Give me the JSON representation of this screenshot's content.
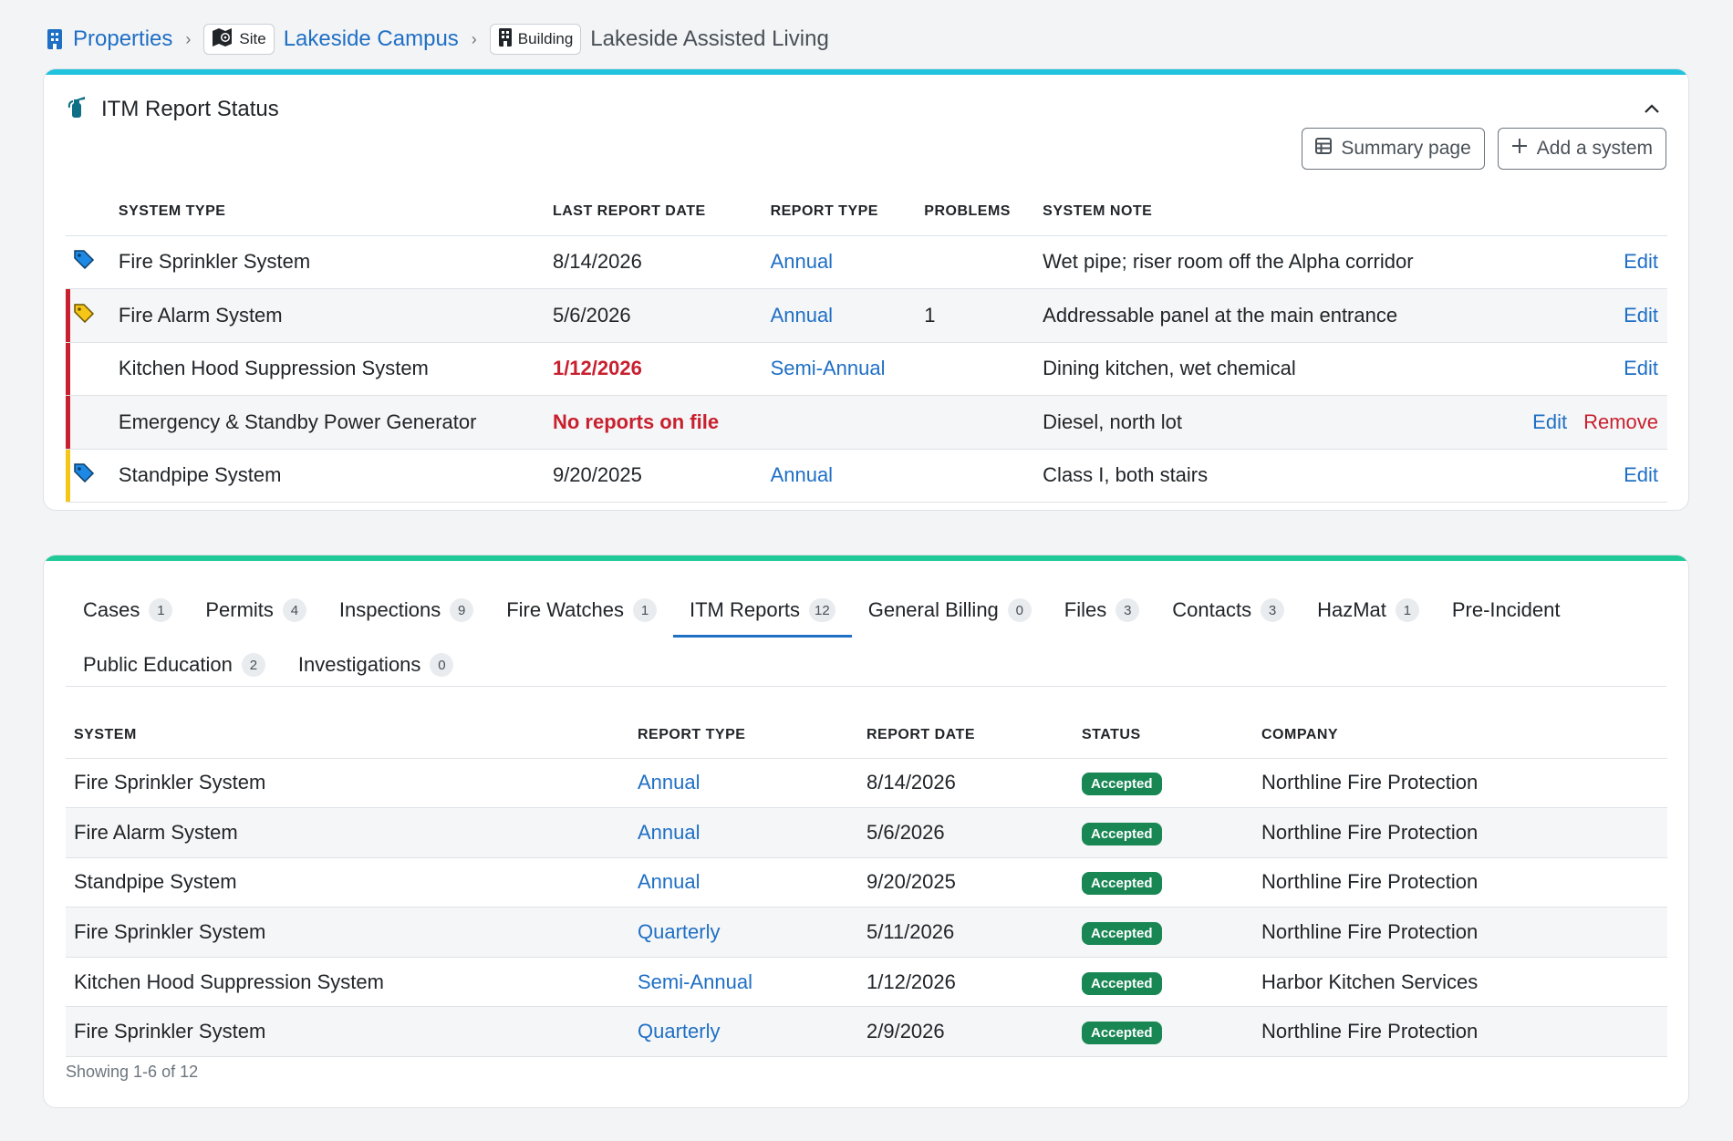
{
  "breadcrumb": {
    "root": "Properties",
    "site_pill": "Site",
    "site_name": "Lakeside Campus",
    "building_pill": "Building",
    "building_name": "Lakeside Assisted Living"
  },
  "itm_status": {
    "title": "ITM Report Status",
    "summary_button": "Summary page",
    "add_button": "Add a system",
    "columns": [
      "SYSTEM TYPE",
      "LAST REPORT DATE",
      "REPORT TYPE",
      "PROBLEMS",
      "SYSTEM NOTE"
    ],
    "rows": [
      {
        "system": "Fire Sprinkler System",
        "date": "8/14/2026",
        "type": "Annual",
        "problems": "",
        "note": "Wet pipe; riser room off the Alpha corridor",
        "edit": "Edit",
        "remove": ""
      },
      {
        "system": "Fire Alarm System",
        "date": "5/6/2026",
        "type": "Annual",
        "problems": "1",
        "note": "Addressable panel at the main entrance",
        "edit": "Edit",
        "remove": ""
      },
      {
        "system": "Kitchen Hood Suppression System",
        "date": "1/12/2026",
        "type": "Semi-Annual",
        "problems": "",
        "note": "Dining kitchen, wet chemical",
        "edit": "Edit",
        "remove": ""
      },
      {
        "system": "Emergency & Standby Power Generator",
        "date": "No reports on file",
        "type": "",
        "problems": "",
        "note": "Diesel, north lot",
        "edit": "Edit",
        "remove": "Remove"
      },
      {
        "system": "Standpipe System",
        "date": "9/20/2025",
        "type": "Annual",
        "problems": "",
        "note": "Class I, both stairs",
        "edit": "Edit",
        "remove": ""
      }
    ]
  },
  "colors": {
    "link": "#1f6fc5",
    "danger": "#c8202f",
    "warning": "#f5c518",
    "card1_accent": "#22c3dd",
    "card2_accent": "#20c997",
    "success": "#198754",
    "tag_blue": "#1e88e5",
    "tag_yellow": "#f5c518"
  },
  "tabs": {
    "row1": [
      {
        "label": "Cases",
        "count": "1"
      },
      {
        "label": "Permits",
        "count": "4"
      },
      {
        "label": "Inspections",
        "count": "9"
      },
      {
        "label": "Fire Watches",
        "count": "1"
      },
      {
        "label": "ITM Reports",
        "count": "12"
      },
      {
        "label": "General Billing",
        "count": "0"
      },
      {
        "label": "Files",
        "count": "3"
      },
      {
        "label": "Contacts",
        "count": "3"
      },
      {
        "label": "HazMat",
        "count": "1"
      },
      {
        "label": "Pre-Incident",
        "count": ""
      }
    ],
    "row2": [
      {
        "label": "Public Education",
        "count": "2"
      },
      {
        "label": "Investigations",
        "count": "0"
      }
    ]
  },
  "reports": {
    "columns": [
      "SYSTEM",
      "REPORT TYPE",
      "REPORT DATE",
      "STATUS",
      "COMPANY"
    ],
    "rows": [
      {
        "system": "Fire Sprinkler System",
        "type": "Annual",
        "date": "8/14/2026",
        "status": "Accepted",
        "company": "Northline Fire Protection"
      },
      {
        "system": "Fire Alarm System",
        "type": "Annual",
        "date": "5/6/2026",
        "status": "Accepted",
        "company": "Northline Fire Protection"
      },
      {
        "system": "Standpipe System",
        "type": "Annual",
        "date": "9/20/2025",
        "status": "Accepted",
        "company": "Northline Fire Protection"
      },
      {
        "system": "Fire Sprinkler System",
        "type": "Quarterly",
        "date": "5/11/2026",
        "status": "Accepted",
        "company": "Northline Fire Protection"
      },
      {
        "system": "Kitchen Hood Suppression System",
        "type": "Semi-Annual",
        "date": "1/12/2026",
        "status": "Accepted",
        "company": "Harbor Kitchen Services"
      },
      {
        "system": "Fire Sprinkler System",
        "type": "Quarterly",
        "date": "2/9/2026",
        "status": "Accepted",
        "company": "Northline Fire Protection"
      }
    ],
    "showing": "Showing 1-6 of 12"
  }
}
